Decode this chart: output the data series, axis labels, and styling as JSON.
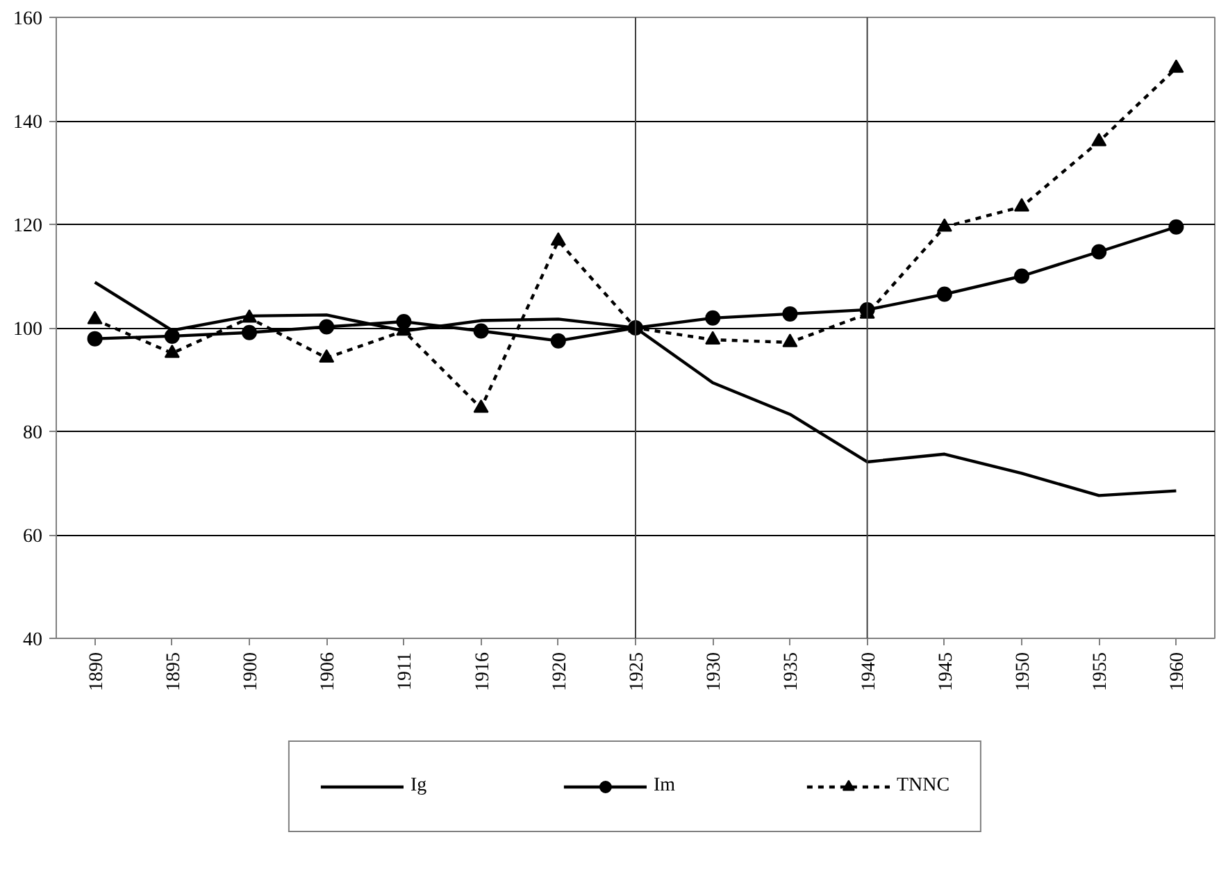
{
  "chart_data": {
    "type": "line",
    "categories": [
      "1890",
      "1895",
      "1900",
      "1906",
      "1911",
      "1916",
      "1920",
      "1925",
      "1930",
      "1935",
      "1940",
      "1945",
      "1950",
      "1955",
      "1960"
    ],
    "series": [
      {
        "name": "Ig",
        "color": "#000000",
        "marker": "none",
        "line_style": "solid",
        "values": [
          108.8,
          99.5,
          102.3,
          102.5,
          99.4,
          101.4,
          101.7,
          100,
          89.4,
          83.3,
          74.1,
          75.6,
          71.9,
          67.6,
          68.5
        ]
      },
      {
        "name": "Im",
        "color": "#000000",
        "marker": "circle",
        "line_style": "solid",
        "values": [
          97.9,
          98.4,
          99.1,
          100.2,
          101.2,
          99.4,
          97.5,
          100,
          101.9,
          102.7,
          103.5,
          106.5,
          110,
          114.7,
          119.5
        ]
      },
      {
        "name": "TNNC",
        "color": "#000000",
        "marker": "triangle",
        "line_style": "dashed",
        "values": [
          101.6,
          95.1,
          101.9,
          94.2,
          99.4,
          84.5,
          116.8,
          100,
          97.7,
          97.2,
          102.7,
          119.5,
          123.4,
          136,
          150.2
        ]
      }
    ],
    "ylim": [
      40,
      160
    ],
    "yticks": [
      40,
      60,
      80,
      100,
      120,
      140,
      160
    ],
    "ref_lines": [
      {
        "axis": "x",
        "value": "1925"
      },
      {
        "axis": "x",
        "value": "1940"
      }
    ],
    "grid": "y",
    "legend": "bottom"
  }
}
